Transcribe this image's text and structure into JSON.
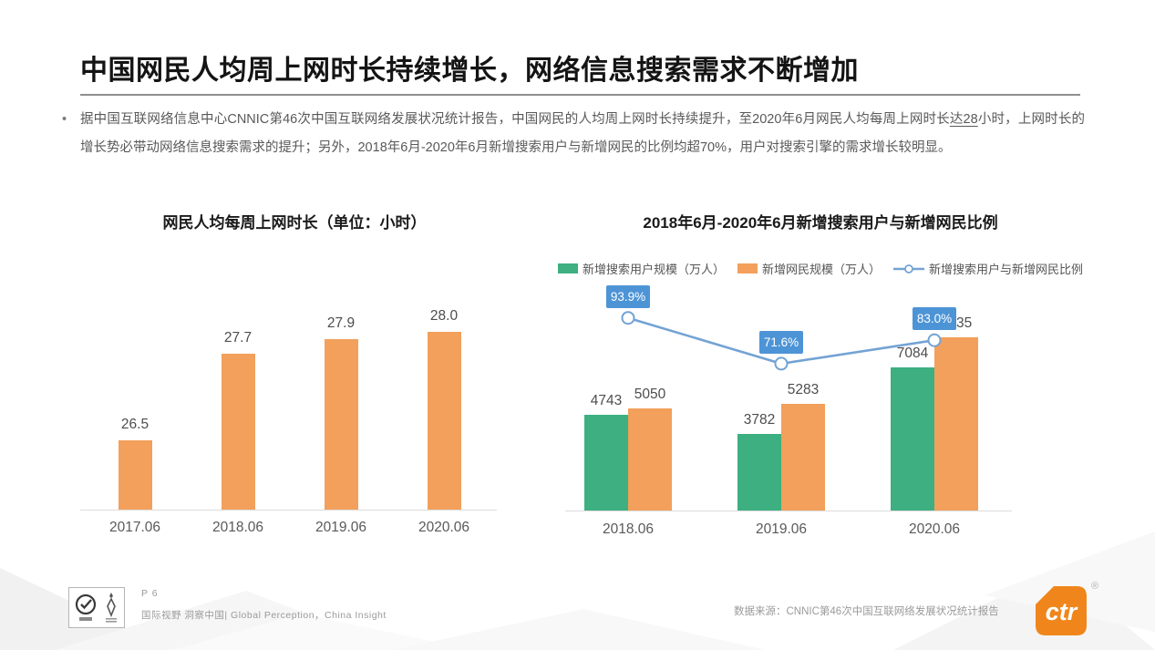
{
  "page": {
    "title": "中国网民人均周上网时长持续增长，网络信息搜索需求不断增加",
    "body": {
      "bullet": "•",
      "text_before": "据中国互联网络信息中心CNNIC第46次中国互联网络发展状况统计报告，中国网民的人均周上网时长持续提升，至2020年6月网民人均每周上网时长",
      "text_underlined": "达28",
      "text_after": "小时，上网时长的增长势必带动网络信息搜索需求的提升；另外，2018年6月-2020年6月新增搜索用户与新增网民的比例均超70%，用户对搜索引擎的需求增长较明显。"
    }
  },
  "chart_data": [
    {
      "type": "bar",
      "title": "网民人均每周上网时长（单位：小时）",
      "categories": [
        "2017.06",
        "2018.06",
        "2019.06",
        "2020.06"
      ],
      "values": [
        26.5,
        27.7,
        27.9,
        28.0
      ],
      "value_labels": [
        "26.5",
        "27.7",
        "27.9",
        "28.0"
      ],
      "xlabel": "",
      "ylabel": "小时",
      "ylim": [
        25.54,
        28.3
      ],
      "grid": false,
      "bar_color": "#F2A05B"
    },
    {
      "type": "bar+line",
      "title": "2018年6月-2020年6月新增搜索用户与新增网民比例",
      "categories": [
        "2018.06",
        "2019.06",
        "2020.06"
      ],
      "series": [
        {
          "name": "新增搜索用户规模（万人）",
          "type": "bar",
          "color": "#3DAF81",
          "values": [
            4743,
            3782,
            7084
          ]
        },
        {
          "name": "新增网民规模（万人）",
          "type": "bar",
          "color": "#F2A05B",
          "values": [
            5050,
            5283,
            8535
          ]
        },
        {
          "name": "新增搜索用户与新增网民比例",
          "type": "line",
          "color": "#73A3D4",
          "values_pct": [
            93.9,
            71.6,
            83.0
          ],
          "labels": [
            "93.9%",
            "71.6%",
            "83.0%"
          ],
          "label_bg": "#4D94D6"
        }
      ],
      "ylim_bars": [
        0,
        9000
      ],
      "ylim_line_pct": [
        0,
        100
      ],
      "grid": false,
      "legend_position": "top"
    }
  ],
  "footer": {
    "page_label": "P 6",
    "tagline": "国际视野 洞察中国| Global Perception，China Insight",
    "source": "数据来源：CNNIC第46次中国互联网络发展状况统计报告",
    "logo_text": "ctr",
    "registered_mark": "®"
  },
  "colors": {
    "accent_orange": "#F2A05B",
    "accent_green": "#3DAF81",
    "accent_blue_line": "#73A3D4",
    "badge_blue": "#4D94D6",
    "logo_orange": "#F0861B"
  }
}
